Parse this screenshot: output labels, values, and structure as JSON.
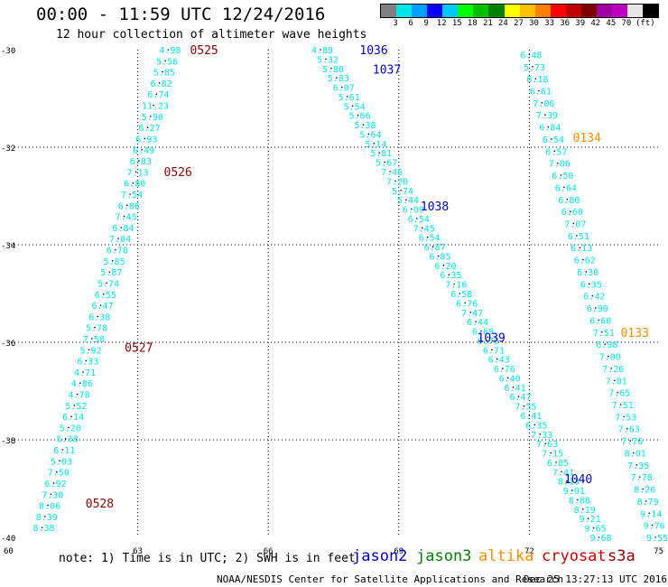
{
  "title": "00:00 - 11:59 UTC 12/24/2016",
  "subtitle": "12 hour collection of altimeter wave heights",
  "legend": {
    "colors": [
      "#808080",
      "#00e5e5",
      "#00a0ff",
      "#0000ff",
      "#00c8ff",
      "#00ff00",
      "#00c000",
      "#008000",
      "#ffff00",
      "#ffc000",
      "#ff8000",
      "#ff0000",
      "#c00000",
      "#800000",
      "#a000a0",
      "#c000c0",
      "#e6e6e6",
      "#000000"
    ],
    "ticks": [
      "3",
      "6",
      "9",
      "12",
      "15",
      "18",
      "21",
      "24",
      "27",
      "30",
      "33",
      "36",
      "39",
      "42",
      "45",
      "70",
      "(ft)"
    ]
  },
  "note": "note: 1) Time is in UTC; 2) SWH is in feet",
  "satellites": [
    {
      "name": "jason2",
      "color": "#0000c8"
    },
    {
      "name": "jason3",
      "color": "#008000"
    },
    {
      "name": "altika",
      "color": "#ff8c00"
    },
    {
      "name": "cryosat",
      "color": "#cc0000"
    },
    {
      "name": "s3a",
      "color": "#8b0000"
    }
  ],
  "credit": "NOAA/NESDIS Center for Satellite Applications and Research",
  "timestamp": "Dec 25 13:27:13 UTC 2016",
  "map": {
    "lon_range": [
      60,
      75
    ],
    "lat_range": [
      -40,
      -30
    ],
    "lon_ticks": [
      "60",
      "63",
      "66",
      "69",
      "72",
      "75"
    ],
    "lat_ticks": [
      "-30",
      "-32",
      "-34",
      "-36",
      "-38",
      "-40"
    ],
    "tracks": [
      {
        "satellite": "s3a",
        "start": [
          -30.0,
          63.7
        ],
        "end": [
          -39.8,
          60.8
        ],
        "color": "#00e5e5",
        "values": [
          "4.98",
          "5.56",
          "5.85",
          "6.82",
          "6.74",
          "11.23",
          "5.90",
          "6.27",
          "6.93",
          "6.49",
          "6.83",
          "7.13",
          "6.80",
          "7.54",
          "6.86",
          "7.45",
          "6.84",
          "7.04",
          "6.78",
          "5.85",
          "5.87",
          "5.74",
          "6.55",
          "6.47",
          "6.38",
          "5.78",
          "7.58",
          "5.92",
          "6.33",
          "4.71",
          "4.86",
          "4.78",
          "5.52",
          "6.14",
          "5.20",
          "5.38",
          "6.11",
          "5.03",
          "7.50",
          "6.92",
          "7.30",
          "8.06",
          "8.39",
          "8.38"
        ],
        "times": [
          {
            "label": "0525",
            "lat": -30.0,
            "lon": 64.2
          },
          {
            "label": "0526",
            "lat": -32.5,
            "lon": 63.6
          },
          {
            "label": "0527",
            "lat": -36.1,
            "lon": 62.7
          },
          {
            "label": "0528",
            "lat": -39.3,
            "lon": 61.8
          }
        ]
      },
      {
        "satellite": "jason2",
        "start": [
          -30.0,
          67.2
        ],
        "end": [
          -40.0,
          73.6
        ],
        "color": "#00e5e5",
        "values": [
          "4.89",
          "5.32",
          "5.80",
          "5.83",
          "6.07",
          "5.61",
          "5.54",
          "5.66",
          "5.38",
          "5.64",
          "5.14",
          "5.81",
          "5.67",
          "7.45",
          "7.20",
          "5.74",
          "5.44",
          "6.09",
          "6.54",
          "7.45",
          "6.54",
          "6.87",
          "6.85",
          "6.20",
          "6.35",
          "7.16",
          "6.58",
          "6.76",
          "7.47",
          "6.44",
          "6.69",
          "6.70",
          "6.71",
          "6.43",
          "6.76",
          "6.40",
          "6.41",
          "6.47",
          "7.55",
          "6.41",
          "6.35",
          "7.33",
          "7.63",
          "7.15",
          "6.85",
          "7.41",
          "8.13",
          "9.01",
          "8.88",
          "8.19",
          "9.21",
          "9.65",
          "9.68"
        ],
        "times": [
          {
            "label": "1036",
            "lat": -30.0,
            "lon": 68.1
          },
          {
            "label": "1037",
            "lat": -30.4,
            "lon": 68.4
          },
          {
            "label": "1038",
            "lat": -33.2,
            "lon": 69.5
          },
          {
            "label": "1039",
            "lat": -35.9,
            "lon": 70.8
          },
          {
            "label": "1040",
            "lat": -38.8,
            "lon": 72.8
          }
        ]
      },
      {
        "satellite": "altika",
        "start": [
          -30.1,
          72.0
        ],
        "end": [
          -40.0,
          74.9
        ],
        "color": "#00e5e5",
        "values": [
          "6.48",
          "5.73",
          "6.18",
          "6.61",
          "7.06",
          "7.39",
          "6.84",
          "6.54",
          "6.57",
          "7.06",
          "6.50",
          "6.64",
          "6.80",
          "6.60",
          "7.07",
          "6.51",
          "6.13",
          "6.62",
          "6.30",
          "6.35",
          "6.42",
          "6.90",
          "6.60",
          "7.51",
          "6.98",
          "7.00",
          "7.26",
          "7.01",
          "7.65",
          "7.51",
          "7.53",
          "7.63",
          "7.76",
          "8.01",
          "7.35",
          "7.78",
          "8.26",
          "8.79",
          "9.14",
          "9.76",
          "9.55"
        ],
        "times": [
          {
            "label": "0134",
            "lat": -31.8,
            "lon": 73.0
          },
          {
            "label": "0133",
            "lat": -35.8,
            "lon": 74.1
          }
        ]
      }
    ]
  }
}
